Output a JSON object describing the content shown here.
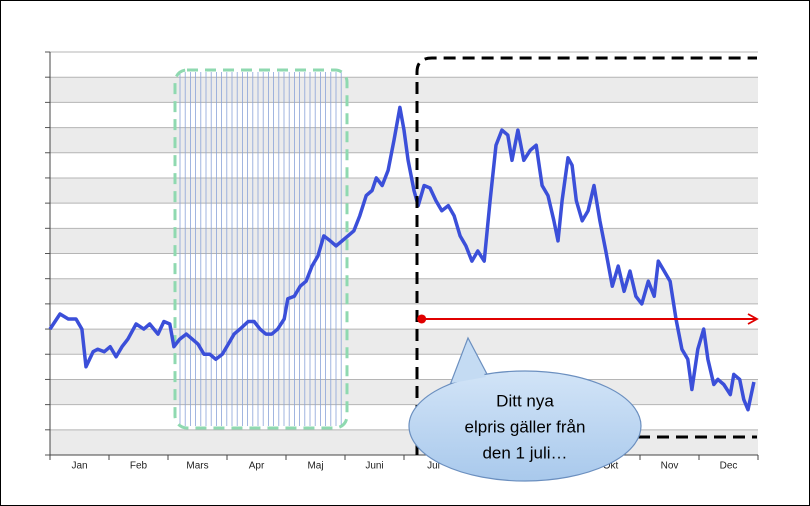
{
  "chart_data": {
    "type": "line",
    "xlim": [
      0,
      12
    ],
    "xticks": [
      {
        "value": 0.5,
        "label": "Jan"
      },
      {
        "value": 1.5,
        "label": "Feb"
      },
      {
        "value": 2.5,
        "label": "Mars"
      },
      {
        "value": 3.5,
        "label": "Apr"
      },
      {
        "value": 4.5,
        "label": "Maj"
      },
      {
        "value": 5.5,
        "label": "Juni"
      },
      {
        "value": 6.5,
        "label": "Jul"
      },
      {
        "value": 9.5,
        "label": "Okt"
      },
      {
        "value": 10.5,
        "label": "Nov"
      },
      {
        "value": 11.5,
        "label": "Dec"
      }
    ],
    "xminorticks": [
      0,
      1,
      2,
      3,
      4,
      5,
      6,
      7,
      8,
      9,
      10,
      11,
      12
    ],
    "ylim": [
      0,
      16
    ],
    "yticks": [
      0,
      1,
      2,
      3,
      4,
      5,
      6,
      7,
      8,
      9,
      10,
      11,
      12,
      13,
      14,
      15,
      16
    ],
    "grid": true,
    "color": "#3b4fd9",
    "x": [
      0,
      0.17,
      0.31,
      0.44,
      0.54,
      0.61,
      0.73,
      0.81,
      0.92,
      1.02,
      1.12,
      1.22,
      1.32,
      1.46,
      1.59,
      1.69,
      1.83,
      1.93,
      2.03,
      2.1,
      2.2,
      2.31,
      2.41,
      2.51,
      2.61,
      2.71,
      2.81,
      2.92,
      3.02,
      3.12,
      3.22,
      3.36,
      3.46,
      3.56,
      3.66,
      3.76,
      3.86,
      3.97,
      4.03,
      4.14,
      4.24,
      4.34,
      4.44,
      4.54,
      4.64,
      4.75,
      4.85,
      4.95,
      5.05,
      5.15,
      5.25,
      5.36,
      5.46,
      5.53,
      5.63,
      5.73,
      5.83,
      5.93,
      6.0,
      6.07,
      6.17,
      6.24,
      6.34,
      6.44,
      6.54,
      6.64,
      6.75,
      6.85,
      6.95,
      7.05,
      7.15,
      7.25,
      7.36,
      7.46,
      7.56,
      7.66,
      7.76,
      7.83,
      7.93,
      8.03,
      8.14,
      8.24,
      8.34,
      8.44,
      8.54,
      8.61,
      8.68,
      8.78,
      8.85,
      8.92,
      9.02,
      9.12,
      9.22,
      9.32,
      9.42,
      9.53,
      9.63,
      9.73,
      9.83,
      9.93,
      10.03,
      10.14,
      10.24,
      10.31,
      10.41,
      10.51,
      10.61,
      10.71,
      10.81,
      10.88,
      10.98,
      11.08,
      11.15,
      11.25,
      11.32,
      11.42,
      11.53,
      11.59,
      11.69,
      11.76,
      11.83,
      11.93
    ],
    "values": [
      5.0,
      5.6,
      5.4,
      5.4,
      5.0,
      3.5,
      4.1,
      4.2,
      4.1,
      4.3,
      3.9,
      4.3,
      4.6,
      5.2,
      5.0,
      5.2,
      4.8,
      5.3,
      5.2,
      4.3,
      4.6,
      4.8,
      4.6,
      4.4,
      4.0,
      4.0,
      3.8,
      4.0,
      4.4,
      4.8,
      5.0,
      5.3,
      5.3,
      5.0,
      4.8,
      4.8,
      5.0,
      5.4,
      6.2,
      6.3,
      6.7,
      6.9,
      7.5,
      7.9,
      8.7,
      8.5,
      8.3,
      8.5,
      8.7,
      8.9,
      9.5,
      10.3,
      10.5,
      11.0,
      10.7,
      11.3,
      12.5,
      13.8,
      12.9,
      11.7,
      10.5,
      9.9,
      10.7,
      10.6,
      10.1,
      9.7,
      9.9,
      9.5,
      8.7,
      8.3,
      7.7,
      8.1,
      7.7,
      10.1,
      12.3,
      12.9,
      12.7,
      11.7,
      12.9,
      11.7,
      12.1,
      12.3,
      10.7,
      10.3,
      9.3,
      8.5,
      10.1,
      11.8,
      11.5,
      10.1,
      9.3,
      9.7,
      10.7,
      9.3,
      8.1,
      6.7,
      7.5,
      6.5,
      7.3,
      6.3,
      6.0,
      6.9,
      6.3,
      7.7,
      7.3,
      6.9,
      5.4,
      4.2,
      3.8,
      2.6,
      4.2,
      5.0,
      3.8,
      2.8,
      3.0,
      2.8,
      2.4,
      3.2,
      3.0,
      2.2,
      1.8,
      2.9
    ],
    "reference_line": {
      "y": 5.4,
      "x_start": 6.3,
      "color": "#e00000"
    },
    "callout": [
      "Ditt nya",
      "elpris gäller från",
      "den 1 juli…"
    ]
  }
}
